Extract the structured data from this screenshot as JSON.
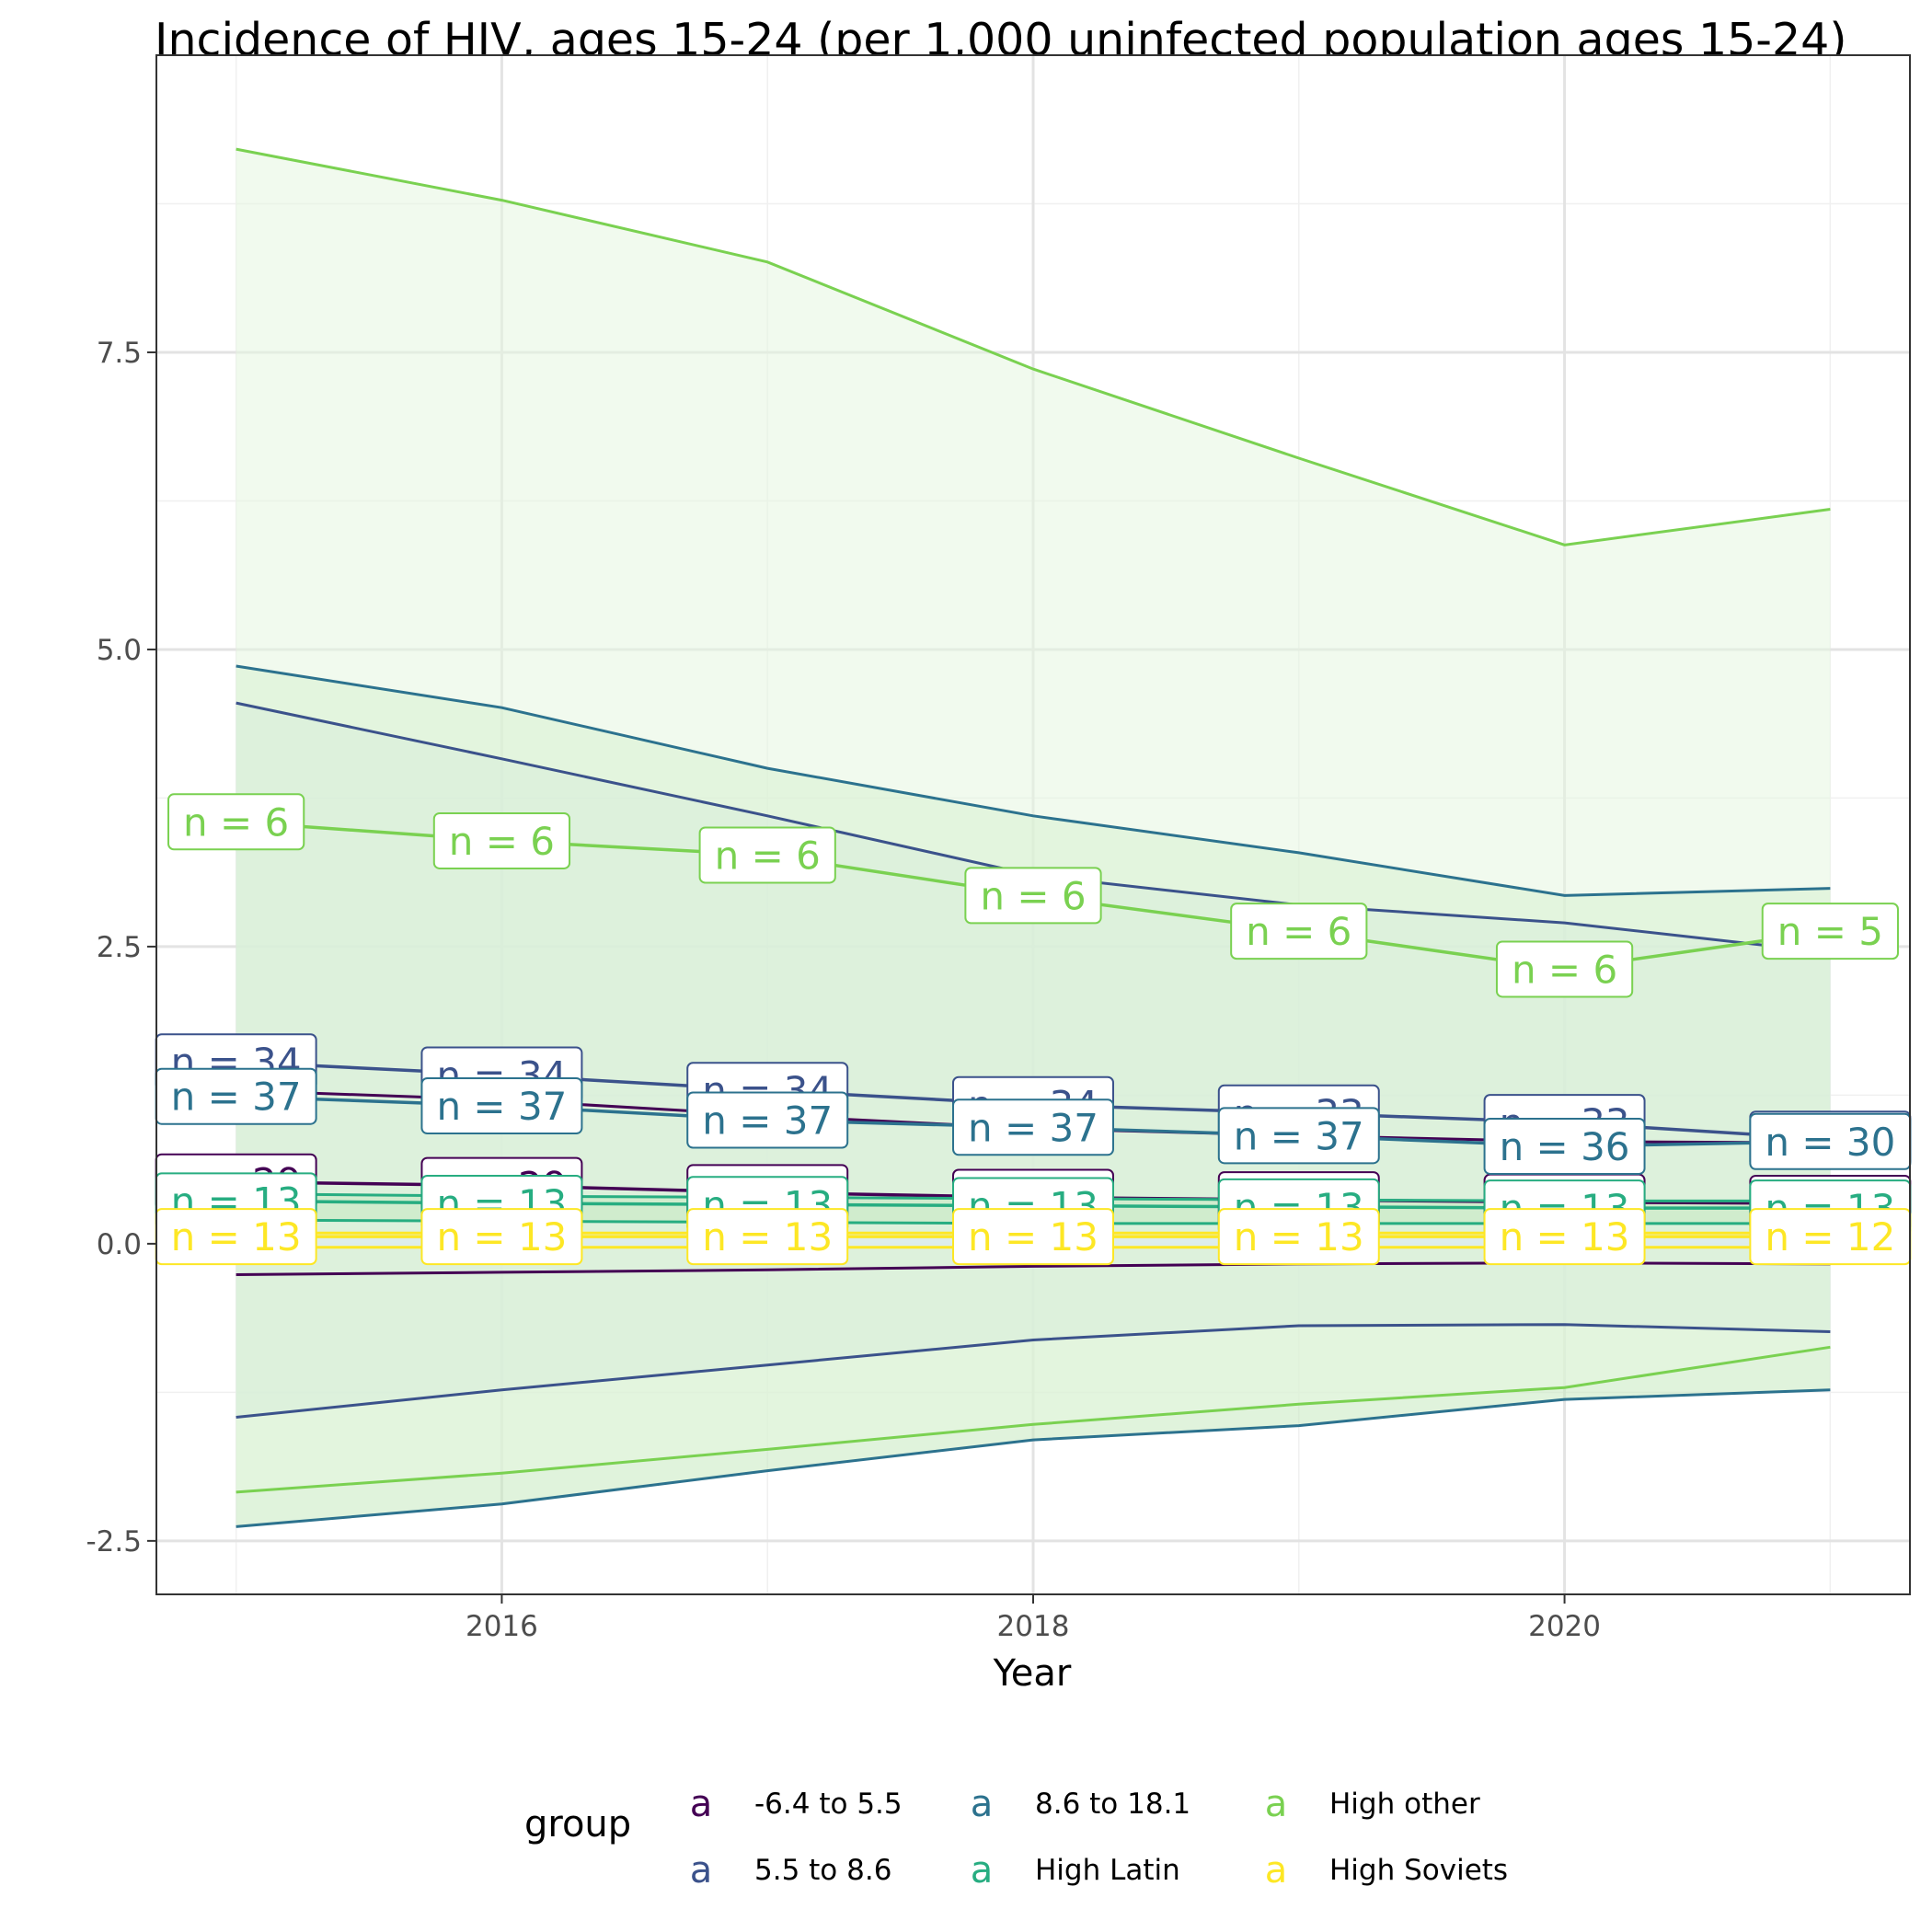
{
  "chart_data": {
    "type": "line",
    "title": "Incidence of HIV, ages 15-24 (per 1,000 uninfected population ages 15-24)",
    "xlabel": "Year",
    "ylabel": "",
    "x": [
      2015,
      2016,
      2017,
      2018,
      2019,
      2020,
      2021
    ],
    "xlim": [
      2014.7,
      2021.3
    ],
    "ylim": [
      -2.95,
      10.0
    ],
    "x_ticks": [
      2016,
      2018,
      2020
    ],
    "x_tick_labels": [
      "2016",
      "2018",
      "2020"
    ],
    "y_ticks": [
      -2.5,
      0,
      2.5,
      5,
      7.5
    ],
    "y_tick_labels": [
      "-2.5",
      "0.0",
      "2.5",
      "5.0",
      "7.5"
    ],
    "grid": true,
    "legend": {
      "title": "group",
      "position": "bottom",
      "key_glyph": "a"
    },
    "series": [
      {
        "name": "-6.4 to 5.5",
        "color": "#440154",
        "mean": [
          0.52,
          0.49,
          0.43,
          0.39,
          0.37,
          0.35,
          0.34
        ],
        "upper": [
          1.29,
          1.21,
          1.08,
          0.97,
          0.91,
          0.86,
          0.85
        ],
        "lower": [
          -0.26,
          -0.24,
          -0.22,
          -0.19,
          -0.17,
          -0.16,
          -0.17
        ],
        "n": [
          "n = 29",
          "n = 29",
          "n = 27",
          "n = 27",
          "n = 27",
          "n = 25",
          "n = 25"
        ]
      },
      {
        "name": "5.5 to 8.6",
        "color": "#3b528b",
        "mean": [
          1.53,
          1.42,
          1.29,
          1.17,
          1.1,
          1.02,
          0.88
        ],
        "upper": [
          4.55,
          4.08,
          3.6,
          3.1,
          2.85,
          2.7,
          2.45
        ],
        "lower": [
          -1.46,
          -1.23,
          -1.02,
          -0.81,
          -0.69,
          -0.68,
          -0.74
        ],
        "n": [
          "n = 34",
          "n = 34",
          "n = 34",
          "n = 34",
          "n = 33",
          "n = 33",
          "n = 30"
        ]
      },
      {
        "name": "8.6 to 18.1",
        "color": "#21908c",
        "line_color": "#2c728e",
        "mean": [
          1.24,
          1.16,
          1.04,
          0.98,
          0.91,
          0.82,
          0.86
        ],
        "upper": [
          4.86,
          4.51,
          4.0,
          3.6,
          3.29,
          2.93,
          2.99
        ],
        "lower": [
          -2.38,
          -2.19,
          -1.91,
          -1.65,
          -1.53,
          -1.31,
          -1.23
        ],
        "n": [
          "n = 37",
          "n = 37",
          "n = 37",
          "n = 37",
          "n = 37",
          "n = 36",
          "n = 30"
        ]
      },
      {
        "name": "High Latin",
        "color": "#27ad81",
        "mean": [
          0.36,
          0.34,
          0.33,
          0.32,
          0.31,
          0.3,
          0.3
        ],
        "upper": [
          0.42,
          0.4,
          0.39,
          0.38,
          0.37,
          0.36,
          0.36
        ],
        "lower": [
          0.2,
          0.19,
          0.18,
          0.17,
          0.17,
          0.17,
          0.17
        ],
        "n": [
          "n = 13",
          "n = 13",
          "n = 13",
          "n = 13",
          "n = 13",
          "n = 13",
          "n = 13"
        ]
      },
      {
        "name": "High other",
        "color": "#7ad151",
        "mean": [
          3.55,
          3.39,
          3.27,
          2.93,
          2.63,
          2.31,
          2.63
        ],
        "upper": [
          9.21,
          8.78,
          8.26,
          7.36,
          6.61,
          5.88,
          6.18
        ],
        "lower": [
          -2.09,
          -1.93,
          -1.73,
          -1.52,
          -1.35,
          -1.21,
          -0.87
        ],
        "n": [
          "n = 6",
          "n = 6",
          "n = 6",
          "n = 6",
          "n = 6",
          "n = 6",
          "n = 5"
        ]
      },
      {
        "name": "High Soviets",
        "color": "#fde725",
        "mean": [
          0.06,
          0.06,
          0.06,
          0.06,
          0.06,
          0.06,
          0.06
        ],
        "upper": [
          0.09,
          0.09,
          0.09,
          0.09,
          0.09,
          0.09,
          0.09
        ],
        "lower": [
          -0.03,
          -0.03,
          -0.03,
          -0.03,
          -0.03,
          -0.03,
          -0.03
        ],
        "n": [
          "n = 13",
          "n = 13",
          "n = 13",
          "n = 13",
          "n = 13",
          "n = 13",
          "n = 12"
        ]
      }
    ],
    "ribbon_fills": [
      "#ffffff",
      "#c6dbef",
      "#c7e9c0",
      "#a1d99b",
      "#e5f5e0",
      "#deebf7"
    ]
  }
}
